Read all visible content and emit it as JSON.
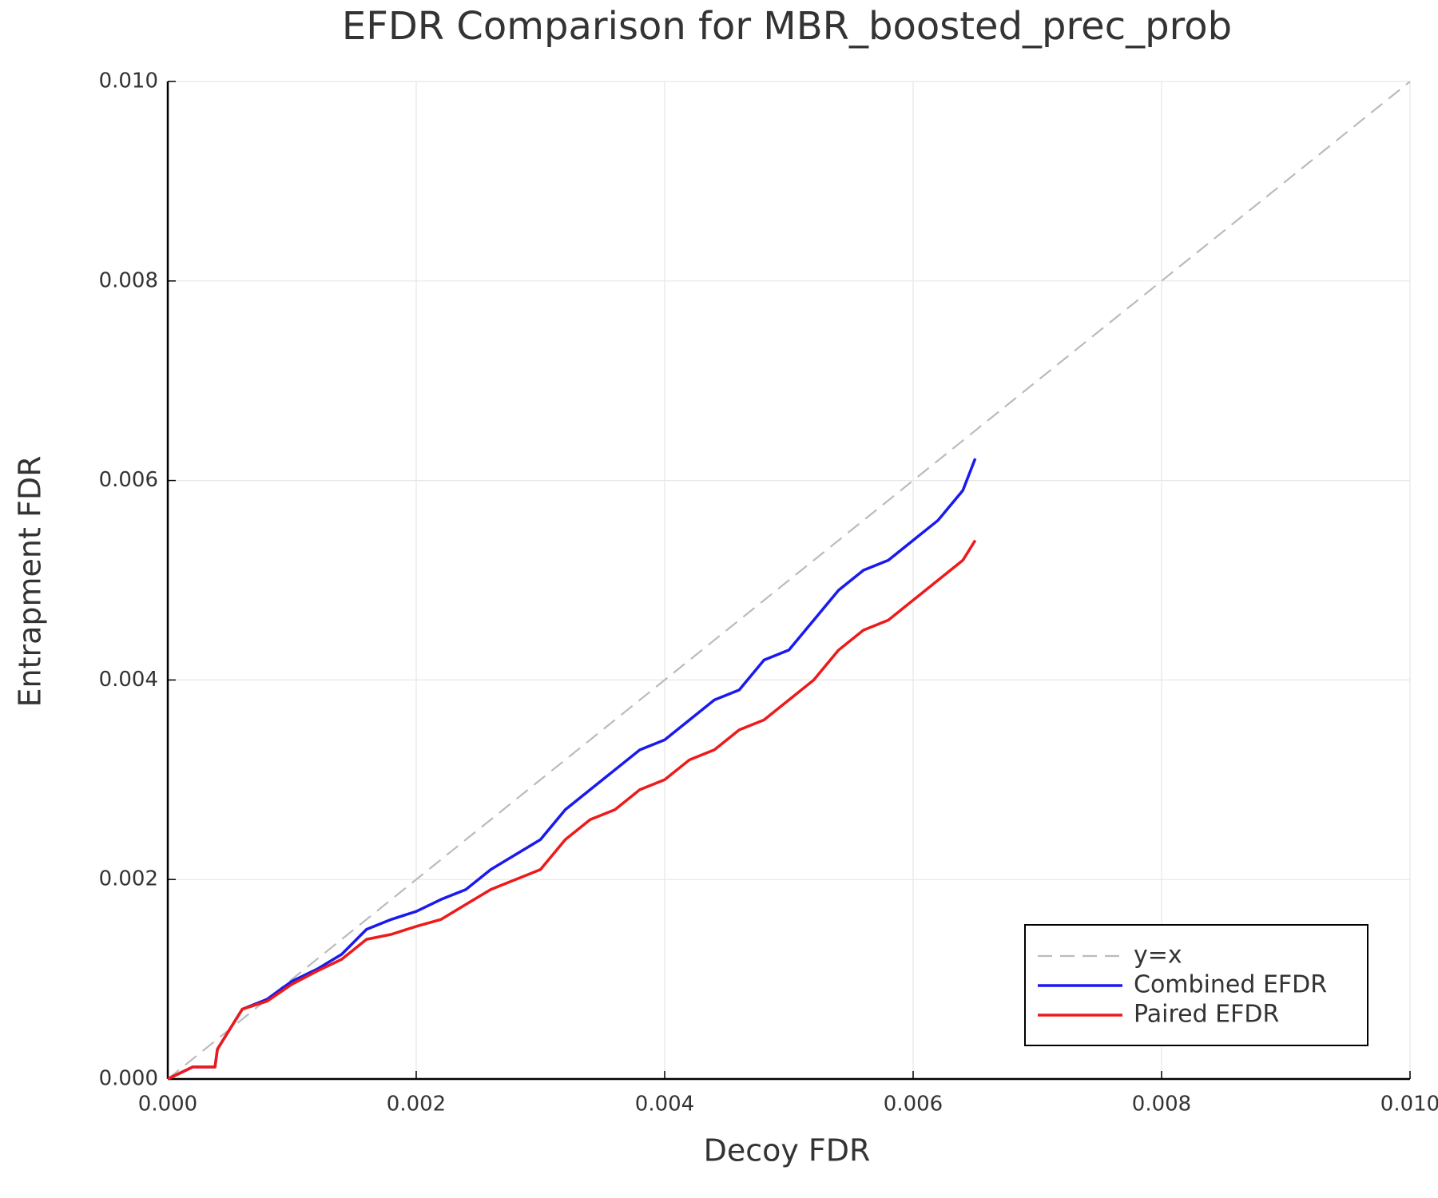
{
  "chart_data": {
    "type": "line",
    "title": "EFDR Comparison for MBR_boosted_prec_prob",
    "xlabel": "Decoy FDR",
    "ylabel": "Entrapment FDR",
    "xlim": [
      0,
      0.01
    ],
    "ylim": [
      0,
      0.01
    ],
    "xticks": [
      {
        "value": 0,
        "label": "0.000"
      },
      0.002,
      0.004,
      0.006,
      0.008,
      {
        "value": 0.01,
        "label": "0.010"
      }
    ],
    "yticks": [
      {
        "value": 0,
        "label": "0.000"
      },
      0.002,
      0.004,
      0.006,
      0.008,
      {
        "value": 0.01,
        "label": "0.010"
      }
    ],
    "grid": true,
    "legend": "bottom right",
    "series": [
      {
        "name": "y=x",
        "color": "#bbbbbb",
        "dash": true,
        "x": [
          0,
          0.01
        ],
        "values": [
          0,
          0.01
        ]
      },
      {
        "name": "Combined EFDR",
        "color": "#1a1aee",
        "dash": false,
        "x": [
          0,
          0.0002,
          0.00038,
          0.0004,
          0.0006,
          0.0008,
          0.001,
          0.0012,
          0.0014,
          0.0016,
          0.0018,
          0.002,
          0.0022,
          0.0024,
          0.0026,
          0.0028,
          0.003,
          0.0032,
          0.0034,
          0.0036,
          0.0038,
          0.004,
          0.0042,
          0.0044,
          0.0046,
          0.0048,
          0.005,
          0.0052,
          0.0054,
          0.0056,
          0.0058,
          0.006,
          0.0062,
          0.0064,
          0.0065
        ],
        "values": [
          0,
          0.00012,
          0.00012,
          0.0003,
          0.0007,
          0.0008,
          0.00098,
          0.0011,
          0.00125,
          0.0015,
          0.0016,
          0.00168,
          0.0018,
          0.0019,
          0.0021,
          0.00225,
          0.0024,
          0.0027,
          0.0029,
          0.0031,
          0.0033,
          0.0034,
          0.0036,
          0.0038,
          0.0039,
          0.0042,
          0.0043,
          0.0046,
          0.0049,
          0.0051,
          0.0052,
          0.0054,
          0.0056,
          0.0059,
          0.00622
        ]
      },
      {
        "name": "Paired EFDR",
        "color": "#ee1a1a",
        "dash": false,
        "x": [
          0,
          0.0002,
          0.00038,
          0.0004,
          0.0006,
          0.0008,
          0.001,
          0.0012,
          0.0014,
          0.0016,
          0.0018,
          0.002,
          0.0022,
          0.0024,
          0.0026,
          0.0028,
          0.003,
          0.0032,
          0.0034,
          0.0036,
          0.0038,
          0.004,
          0.0042,
          0.0044,
          0.0046,
          0.0048,
          0.005,
          0.0052,
          0.0054,
          0.0056,
          0.0058,
          0.006,
          0.0062,
          0.0064,
          0.0065
        ],
        "values": [
          0,
          0.00012,
          0.00012,
          0.0003,
          0.0007,
          0.00078,
          0.00095,
          0.00108,
          0.0012,
          0.0014,
          0.00145,
          0.00153,
          0.0016,
          0.00175,
          0.0019,
          0.002,
          0.0021,
          0.0024,
          0.0026,
          0.0027,
          0.0029,
          0.003,
          0.0032,
          0.0033,
          0.0035,
          0.0036,
          0.0038,
          0.004,
          0.0043,
          0.0045,
          0.0046,
          0.0048,
          0.005,
          0.0052,
          0.0054
        ]
      }
    ]
  }
}
